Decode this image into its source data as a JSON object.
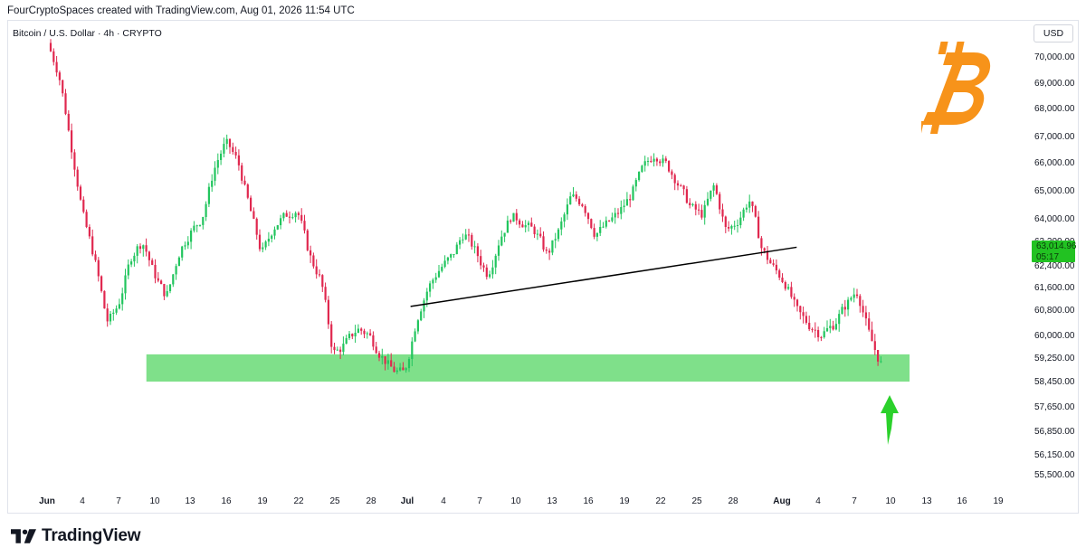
{
  "header": {
    "caption": "FourCryptoSpaces created with TradingView.com, Aug 01, 2026 11:54 UTC",
    "symbol": "Bitcoin / U.S. Dollar · 4h · CRYPTO",
    "currency_button": "USD"
  },
  "branding": {
    "name": "TradingView",
    "logo_icon": "tradingview-logo-icon",
    "bitcoin_icon": "bitcoin-logo-icon",
    "bitcoin_color": "#f7931a"
  },
  "colors": {
    "up": "#22c55e",
    "down": "#e0284f",
    "support_zone": "#7fe08a",
    "trendline": "#000000",
    "price_label_bg": "#22c222",
    "arrow": "#2bd12b"
  },
  "chart_data": {
    "type": "candlestick",
    "title": "Bitcoin / U.S. Dollar · 4h · CRYPTO",
    "y_axis": {
      "ticks": [
        "70,000.00",
        "69,000.00",
        "68,000.00",
        "67,000.00",
        "66,000.00",
        "65,000.00",
        "64,000.00",
        "63,200.00",
        "62,400.00",
        "61,600.00",
        "60,800.00",
        "60,000.00",
        "59,250.00",
        "58,450.00",
        "57,650.00",
        "56,850.00",
        "56,150.00",
        "55,500.00"
      ],
      "range": [
        55000,
        70500
      ]
    },
    "x_axis": {
      "ticks": [
        "Jun",
        "4",
        "7",
        "10",
        "13",
        "16",
        "19",
        "22",
        "25",
        "28",
        "Jul",
        "4",
        "7",
        "10",
        "13",
        "16",
        "19",
        "22",
        "25",
        "28",
        "Aug",
        "4",
        "7",
        "10",
        "13",
        "16",
        "19"
      ]
    },
    "price_path": [
      [
        "Jun 1",
        70500
      ],
      [
        "Jun 2",
        69200
      ],
      [
        "Jun 3",
        66500
      ],
      [
        "Jun 4",
        64000
      ],
      [
        "Jun 5",
        62500
      ],
      [
        "Jun 6",
        60300
      ],
      [
        "Jun 7",
        61000
      ],
      [
        "Jun 8",
        62700
      ],
      [
        "Jun 9",
        63200
      ],
      [
        "Jun 10",
        62000
      ],
      [
        "Jun 11",
        61200
      ],
      [
        "Jun 12",
        62800
      ],
      [
        "Jun 13",
        63500
      ],
      [
        "Jun 14",
        64000
      ],
      [
        "Jun 15",
        65800
      ],
      [
        "Jun 16",
        66800
      ],
      [
        "Jun 17",
        66000
      ],
      [
        "Jun 18",
        64300
      ],
      [
        "Jun 19",
        62700
      ],
      [
        "Jun 20",
        63700
      ],
      [
        "Jun 21",
        64100
      ],
      [
        "Jun 22",
        64300
      ],
      [
        "Jun 23",
        62700
      ],
      [
        "Jun 24",
        61800
      ],
      [
        "Jun 25",
        59300
      ],
      [
        "Jun 26",
        59700
      ],
      [
        "Jun 27",
        60200
      ],
      [
        "Jun 28",
        60000
      ],
      [
        "Jun 29",
        59300
      ],
      [
        "Jun 30",
        58800
      ],
      [
        "Jul 1",
        58700
      ],
      [
        "Jul 2",
        60500
      ],
      [
        "Jul 3",
        61600
      ],
      [
        "Jul 4",
        62300
      ],
      [
        "Jul 5",
        62700
      ],
      [
        "Jul 6",
        63500
      ],
      [
        "Jul 7",
        62800
      ],
      [
        "Jul 8",
        62000
      ],
      [
        "Jul 9",
        63300
      ],
      [
        "Jul 10",
        64100
      ],
      [
        "Jul 11",
        63800
      ],
      [
        "Jul 12",
        63500
      ],
      [
        "Jul 13",
        62700
      ],
      [
        "Jul 14",
        63600
      ],
      [
        "Jul 15",
        64800
      ],
      [
        "Jul 16",
        64500
      ],
      [
        "Jul 17",
        63400
      ],
      [
        "Jul 18",
        63800
      ],
      [
        "Jul 19",
        64200
      ],
      [
        "Jul 20",
        64800
      ],
      [
        "Jul 21",
        65800
      ],
      [
        "Jul 22",
        66300
      ],
      [
        "Jul 23",
        65900
      ],
      [
        "Jul 24",
        65200
      ],
      [
        "Jul 25",
        64400
      ],
      [
        "Jul 26",
        64100
      ],
      [
        "Jul 27",
        65200
      ],
      [
        "Jul 28",
        63500
      ],
      [
        "Jul 29",
        63900
      ],
      [
        "Jul 30",
        64700
      ],
      [
        "Jul 31",
        62900
      ],
      [
        "Aug 1",
        62300
      ],
      [
        "Aug 2",
        61700
      ],
      [
        "Aug 3",
        60700
      ],
      [
        "Aug 4",
        60300
      ],
      [
        "Aug 5",
        60000
      ],
      [
        "Aug 6",
        60300
      ],
      [
        "Aug 7",
        60900
      ],
      [
        "Aug 8",
        61500
      ],
      [
        "Aug 9",
        60000
      ],
      [
        "Aug 10",
        59000
      ]
    ],
    "support_zone": {
      "low": 58450,
      "high": 59100,
      "start": "Jun 6",
      "end": "Aug 14"
    },
    "trendline": {
      "start": [
        "Jul 2",
        60900
      ],
      "end": [
        "Aug 2",
        62950
      ]
    },
    "current_price": "63,014.96",
    "countdown": "05:17",
    "arrow_direction": "up"
  }
}
